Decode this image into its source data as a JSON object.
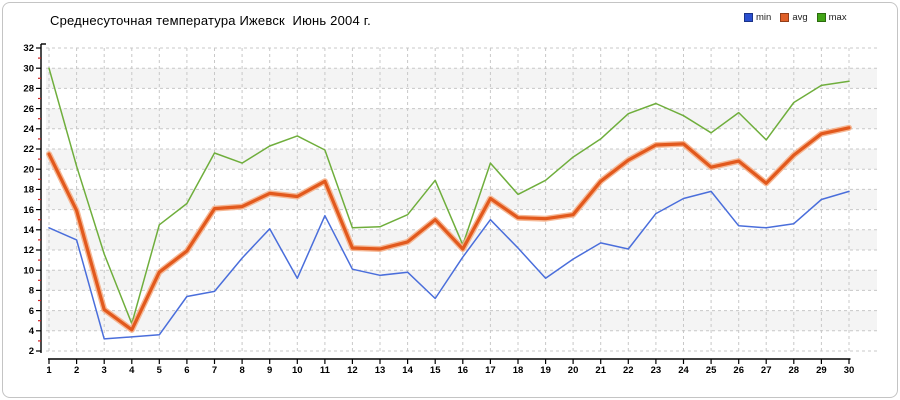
{
  "window": {
    "background": "#ffffff",
    "border_color": "#c4c4c4"
  },
  "header": {
    "title": "Среднесуточная температура Ижевск  Июнь 2004 г."
  },
  "legend": {
    "items": [
      {
        "label": "min",
        "color": "#2a4fd0"
      },
      {
        "label": "avg",
        "color": "#e06028"
      },
      {
        "label": "max",
        "color": "#42a516"
      }
    ]
  },
  "chart_data": {
    "type": "line",
    "title": "Среднесуточная температура Ижевск  Июнь 2004 г.",
    "xlabel": "",
    "ylabel": "",
    "x": [
      1,
      2,
      3,
      4,
      5,
      6,
      7,
      8,
      9,
      10,
      11,
      12,
      13,
      14,
      15,
      16,
      17,
      18,
      19,
      20,
      21,
      22,
      23,
      24,
      25,
      26,
      27,
      28,
      29,
      30
    ],
    "x_tick_labels": [
      "1",
      "2",
      "3",
      "4",
      "5",
      "6",
      "7",
      "8",
      "9",
      "10",
      "11",
      "12",
      "13",
      "14",
      "15",
      "16",
      "17",
      "18",
      "19",
      "20",
      "21",
      "22",
      "23",
      "24",
      "25",
      "26",
      "27",
      "28",
      "29",
      "30"
    ],
    "y_ticks": [
      2,
      4,
      6,
      8,
      10,
      12,
      14,
      16,
      18,
      20,
      22,
      24,
      26,
      28,
      30,
      32
    ],
    "ylim": [
      2,
      32
    ],
    "xlim": [
      1,
      30
    ],
    "grid": "dashed",
    "grid_color": "#c8c8c8",
    "band_color": "#f4f4f4",
    "axis_color": "#000000",
    "minor_tick_color": "#cc2222",
    "legend_position": "top-right",
    "series": [
      {
        "name": "min",
        "color": "#2a4fd0",
        "line_color": "#4a6edb",
        "values": [
          14.2,
          13.0,
          3.2,
          3.4,
          3.6,
          7.4,
          7.9,
          11.2,
          14.1,
          9.2,
          15.4,
          10.1,
          9.5,
          9.8,
          7.2,
          11.3,
          15.0,
          12.2,
          9.2,
          11.1,
          12.7,
          12.1,
          15.6,
          17.1,
          17.8,
          14.4,
          14.2,
          14.6,
          17.0,
          17.8
        ]
      },
      {
        "name": "avg",
        "color": "#e06028",
        "line_color": "#e2591d",
        "halo_color": "#f5b089",
        "values": [
          21.5,
          15.9,
          6.1,
          4.1,
          9.8,
          11.9,
          16.1,
          16.3,
          17.6,
          17.3,
          18.8,
          12.2,
          12.1,
          12.8,
          15.0,
          12.1,
          17.1,
          15.2,
          15.1,
          15.5,
          18.8,
          20.9,
          22.4,
          22.5,
          20.2,
          20.8,
          18.6,
          21.4,
          23.5,
          24.1
        ]
      },
      {
        "name": "max",
        "color": "#42a516",
        "line_color": "#6fae3c",
        "values": [
          30.0,
          20.3,
          11.6,
          4.7,
          14.5,
          16.6,
          21.6,
          20.6,
          22.3,
          23.3,
          21.9,
          14.2,
          14.3,
          15.5,
          18.9,
          12.5,
          20.6,
          17.5,
          18.9,
          21.2,
          23.0,
          25.5,
          26.5,
          25.3,
          23.6,
          25.6,
          22.9,
          26.6,
          28.3,
          28.7
        ]
      }
    ]
  }
}
